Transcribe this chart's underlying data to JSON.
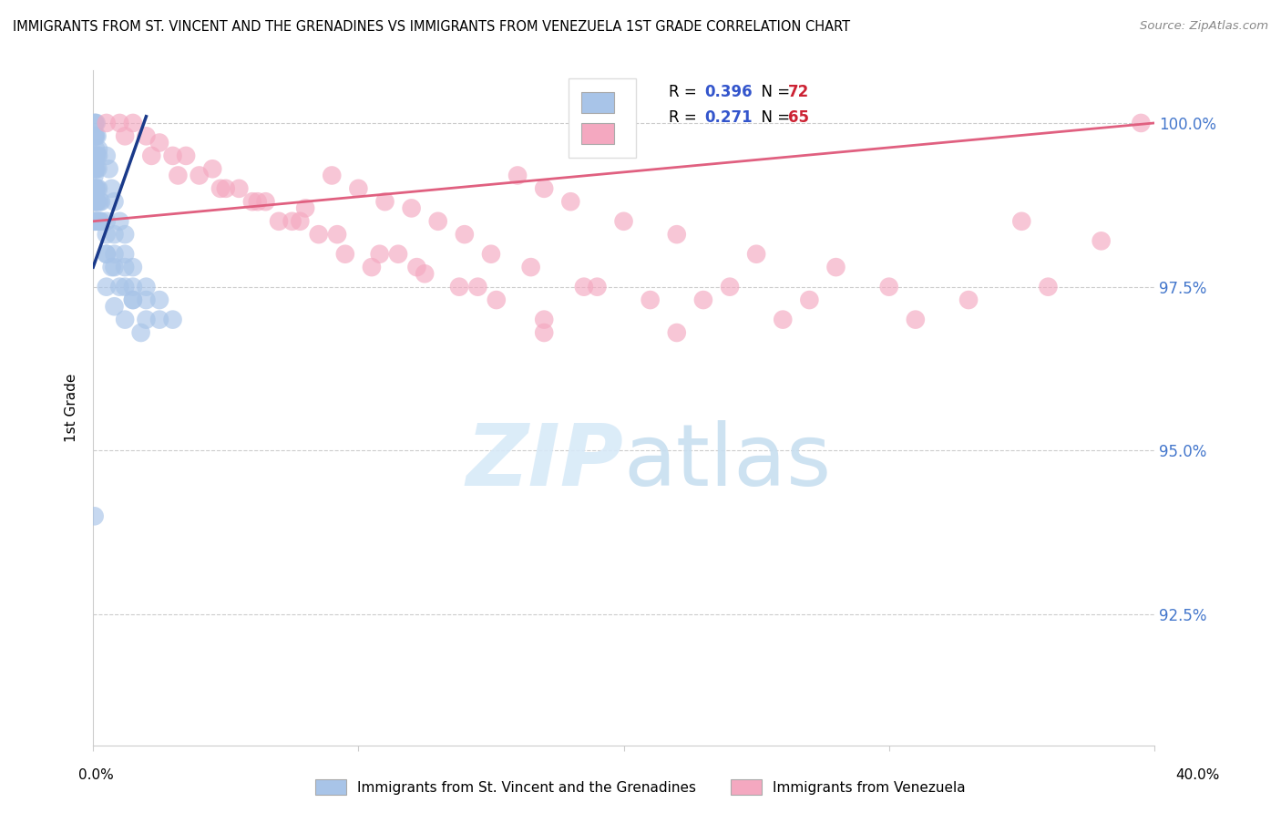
{
  "title": "IMMIGRANTS FROM ST. VINCENT AND THE GRENADINES VS IMMIGRANTS FROM VENEZUELA 1ST GRADE CORRELATION CHART",
  "source": "Source: ZipAtlas.com",
  "ylabel": "1st Grade",
  "x_min": 0.0,
  "x_max": 40.0,
  "y_min": 90.5,
  "y_max": 100.8,
  "y_ticks": [
    92.5,
    95.0,
    97.5,
    100.0
  ],
  "blue_R": 0.396,
  "blue_N": 72,
  "pink_R": 0.271,
  "pink_N": 65,
  "blue_label": "Immigrants from St. Vincent and the Grenadines",
  "pink_label": "Immigrants from Venezuela",
  "blue_color": "#a8c4e8",
  "pink_color": "#f4a8c0",
  "blue_line_color": "#1a3a8a",
  "pink_line_color": "#e06080",
  "legend_R_color": "#3355cc",
  "legend_N_color": "#cc2233",
  "watermark_color": "#d8eaf8",
  "blue_x": [
    0.05,
    0.08,
    0.12,
    0.05,
    0.08,
    0.1,
    0.15,
    0.1,
    0.2,
    0.05,
    0.08,
    0.1,
    0.15,
    0.2,
    0.05,
    0.08,
    0.12,
    0.18,
    0.05,
    0.08,
    0.1,
    0.15,
    0.2,
    0.05,
    0.08,
    0.12,
    0.18,
    0.25,
    0.3,
    0.05,
    0.08,
    0.12,
    0.18,
    0.25,
    0.3,
    0.5,
    0.6,
    0.7,
    0.8,
    1.0,
    1.2,
    0.5,
    0.7,
    1.0,
    1.5,
    0.5,
    0.8,
    1.2,
    1.8,
    0.5,
    0.8,
    1.2,
    1.5,
    2.0,
    0.5,
    0.8,
    1.2,
    1.5,
    2.0,
    2.5,
    0.5,
    0.8,
    1.2,
    1.5,
    2.0,
    2.5,
    3.0,
    0.05,
    0.08,
    0.12,
    0.18,
    0.05
  ],
  "blue_y": [
    100.0,
    100.0,
    100.0,
    99.8,
    99.8,
    99.8,
    99.8,
    99.6,
    99.6,
    99.5,
    99.5,
    99.5,
    99.5,
    99.5,
    99.3,
    99.3,
    99.3,
    99.3,
    99.0,
    99.0,
    99.0,
    99.0,
    99.0,
    98.8,
    98.8,
    98.8,
    98.8,
    98.8,
    98.8,
    98.5,
    98.5,
    98.5,
    98.5,
    98.5,
    98.5,
    99.5,
    99.3,
    99.0,
    98.8,
    98.5,
    98.3,
    98.0,
    97.8,
    97.5,
    97.3,
    97.5,
    97.2,
    97.0,
    96.8,
    98.0,
    97.8,
    97.5,
    97.3,
    97.0,
    98.3,
    98.0,
    97.8,
    97.5,
    97.3,
    97.0,
    98.5,
    98.3,
    98.0,
    97.8,
    97.5,
    97.3,
    97.0,
    99.2,
    99.0,
    98.8,
    98.5,
    94.0
  ],
  "pink_x": [
    0.5,
    1.0,
    1.5,
    2.0,
    3.0,
    4.0,
    5.0,
    6.0,
    7.0,
    8.0,
    9.0,
    10.0,
    11.0,
    12.0,
    13.0,
    14.0,
    15.0,
    16.0,
    17.0,
    18.0,
    20.0,
    22.0,
    25.0,
    28.0,
    30.0,
    33.0,
    35.0,
    38.0,
    39.5,
    2.5,
    3.5,
    4.5,
    5.5,
    6.5,
    7.5,
    8.5,
    9.5,
    10.5,
    11.5,
    12.5,
    14.5,
    16.5,
    18.5,
    21.0,
    24.0,
    27.0,
    31.0,
    36.0,
    1.2,
    2.2,
    3.2,
    4.8,
    6.2,
    7.8,
    9.2,
    10.8,
    12.2,
    13.8,
    15.2,
    17.0,
    19.0,
    23.0,
    26.0,
    22.0,
    17.0
  ],
  "pink_y": [
    100.0,
    100.0,
    100.0,
    99.8,
    99.5,
    99.2,
    99.0,
    98.8,
    98.5,
    98.7,
    99.2,
    99.0,
    98.8,
    98.7,
    98.5,
    98.3,
    98.0,
    99.2,
    99.0,
    98.8,
    98.5,
    98.3,
    98.0,
    97.8,
    97.5,
    97.3,
    98.5,
    98.2,
    100.0,
    99.7,
    99.5,
    99.3,
    99.0,
    98.8,
    98.5,
    98.3,
    98.0,
    97.8,
    98.0,
    97.7,
    97.5,
    97.8,
    97.5,
    97.3,
    97.5,
    97.3,
    97.0,
    97.5,
    99.8,
    99.5,
    99.2,
    99.0,
    98.8,
    98.5,
    98.3,
    98.0,
    97.8,
    97.5,
    97.3,
    97.0,
    97.5,
    97.3,
    97.0,
    96.8,
    96.8
  ],
  "blue_line_x0": 0.0,
  "blue_line_y0": 97.8,
  "blue_line_x1": 2.0,
  "blue_line_y1": 100.1,
  "pink_line_x0": 0.0,
  "pink_line_y0": 98.5,
  "pink_line_x1": 40.0,
  "pink_line_y1": 100.0
}
